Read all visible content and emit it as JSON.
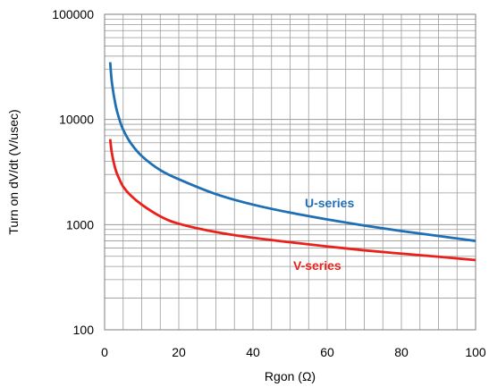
{
  "chart_data": {
    "type": "line",
    "xlabel": "Rgon (Ω)",
    "ylabel": "Turn on dV/dt (V/usec)",
    "xlim": [
      0,
      100
    ],
    "ylim": [
      100,
      100000
    ],
    "y_scale": "log",
    "grid": true,
    "x_ticks": [
      "0",
      "20",
      "40",
      "60",
      "80",
      "100"
    ],
    "y_ticks": [
      "100",
      "1000",
      "10000",
      "100000"
    ],
    "series": [
      {
        "name": "U-series",
        "color": "#1f6fb4",
        "x": [
          1.5,
          2,
          3,
          4,
          5,
          7,
          10,
          15,
          20,
          30,
          40,
          50,
          60,
          70,
          80,
          90,
          100
        ],
        "y": [
          35000,
          22000,
          13500,
          10000,
          8000,
          6000,
          4500,
          3300,
          2700,
          1950,
          1550,
          1300,
          1120,
          980,
          870,
          780,
          700
        ]
      },
      {
        "name": "V-series",
        "color": "#e8221b",
        "x": [
          1.5,
          2,
          3,
          4,
          5,
          7,
          10,
          15,
          20,
          30,
          40,
          50,
          60,
          70,
          80,
          90,
          100
        ],
        "y": [
          6500,
          4700,
          3300,
          2700,
          2300,
          1900,
          1550,
          1200,
          1020,
          850,
          750,
          680,
          620,
          570,
          530,
          495,
          460
        ]
      }
    ]
  }
}
